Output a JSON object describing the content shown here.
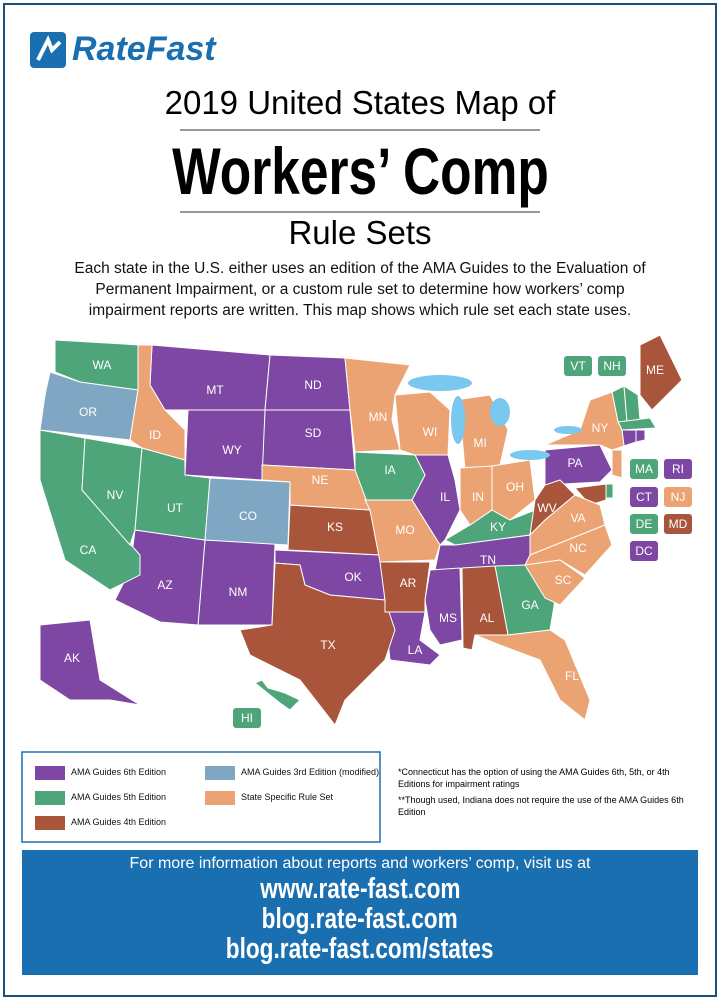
{
  "header": {
    "brand": [
      "Rate",
      "Fast"
    ],
    "title_line1": "2019 United States Map of",
    "title_line2": "Workers’ Comp",
    "title_line3": "Rule Sets",
    "description": "Each state in the U.S. either uses an edition of the AMA Guides to the Evaluation of Permanent Impairment, or a custom rule set to determine how workers’ comp impairment reports are written. This map shows which rule set each state uses."
  },
  "legend": {
    "items": [
      {
        "label": "AMA Guides 6th Edition",
        "color": "#7d47a3",
        "states": [
          "MT",
          "ND",
          "SD",
          "WY",
          "NM",
          "AZ",
          "OK",
          "IL",
          "TN",
          "MS",
          "LA",
          "PA",
          "AK",
          "CT",
          "RI",
          "DC"
        ]
      },
      {
        "label": "AMA Guides 5th Edition",
        "color": "#4fa57a",
        "states": [
          "WA",
          "CA",
          "NV",
          "UT",
          "IA",
          "KY",
          "GA",
          "HI",
          "VT",
          "NH",
          "MA",
          "DE"
        ]
      },
      {
        "label": "AMA Guides 4th Edition",
        "color": "#a8553b",
        "states": [
          "ME",
          "KS",
          "TX",
          "AR",
          "AL",
          "WV",
          "MD"
        ]
      },
      {
        "label": "AMA Guides 3rd Edition (modified)",
        "color": "#7fa6c2",
        "states": [
          "OR",
          "CO"
        ]
      },
      {
        "label": "State Specific Rule Set",
        "color": "#eba373",
        "states": [
          "ID",
          "MN",
          "WI",
          "MI",
          "NE",
          "MO",
          "IN",
          "OH",
          "NY",
          "VA",
          "NC",
          "SC",
          "FL",
          "NJ"
        ]
      }
    ]
  },
  "notes": [
    "*Connecticut has the option of using the AMA Guides 6th, 5th, or 4th Editions for impairment ratings",
    "**Though used, Indiana does not require the use of the AMA Guides 6th Edition"
  ],
  "footer": {
    "text": "For more information about reports and workers’ comp, visit us at",
    "links": [
      "www.rate-fast.com",
      "blog.rate-fast.com",
      "blog.rate-fast.com/states"
    ]
  }
}
